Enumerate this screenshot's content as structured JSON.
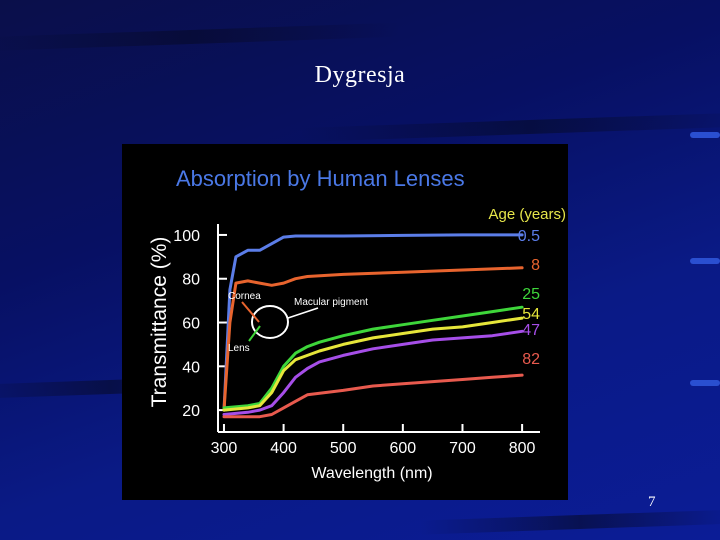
{
  "slide": {
    "title": "Dygresja",
    "page_number": "7"
  },
  "chart_data": {
    "type": "line",
    "title": "Absorption by Human Lenses",
    "xlabel": "Wavelength (nm)",
    "ylabel": "Transmittance (%)",
    "xlim": [
      290,
      830
    ],
    "ylim": [
      10,
      105
    ],
    "x_ticks": [
      300,
      400,
      500,
      600,
      700,
      800
    ],
    "y_ticks": [
      20,
      40,
      60,
      80,
      100
    ],
    "legend_title": "Age (years)",
    "annotations": [
      {
        "text": "Cornea"
      },
      {
        "text": "Macular pigment"
      },
      {
        "text": "Lens"
      }
    ],
    "series": [
      {
        "name": "0.5",
        "color": "#5b7de8",
        "x": [
          300,
          310,
          320,
          340,
          360,
          380,
          400,
          420,
          440,
          500,
          600,
          700,
          800
        ],
        "y": [
          20,
          75,
          90,
          93,
          93,
          96,
          99,
          99.5,
          99.5,
          99.5,
          99.8,
          100,
          100
        ]
      },
      {
        "name": "8",
        "color": "#e8642e",
        "x": [
          300,
          310,
          320,
          340,
          360,
          380,
          400,
          420,
          440,
          500,
          600,
          700,
          800
        ],
        "y": [
          20,
          60,
          78,
          79,
          78,
          77,
          78,
          80,
          81,
          82,
          83,
          84,
          85
        ]
      },
      {
        "name": "25",
        "color": "#3ed63a",
        "x": [
          300,
          340,
          360,
          380,
          400,
          420,
          440,
          460,
          500,
          550,
          600,
          650,
          700,
          750,
          800
        ],
        "y": [
          21,
          22,
          23,
          30,
          40,
          46,
          49,
          51,
          54,
          57,
          59,
          61,
          63,
          65,
          67
        ]
      },
      {
        "name": "54",
        "color": "#e6e63a",
        "x": [
          300,
          340,
          360,
          380,
          400,
          420,
          440,
          460,
          500,
          550,
          600,
          650,
          700,
          750,
          800
        ],
        "y": [
          20,
          21,
          22,
          28,
          38,
          43,
          45,
          47,
          50,
          53,
          55,
          57,
          58,
          60,
          62
        ]
      },
      {
        "name": "47",
        "color": "#a64ee8",
        "x": [
          300,
          340,
          360,
          380,
          400,
          420,
          440,
          460,
          500,
          550,
          600,
          650,
          700,
          750,
          800
        ],
        "y": [
          18,
          19,
          20,
          22,
          28,
          35,
          39,
          42,
          45,
          48,
          50,
          52,
          53,
          54,
          56
        ]
      },
      {
        "name": "82",
        "color": "#e85a4e",
        "x": [
          300,
          340,
          360,
          380,
          400,
          420,
          440,
          500,
          550,
          600,
          650,
          700,
          750,
          800
        ],
        "y": [
          17,
          17,
          17,
          18,
          21,
          24,
          27,
          29,
          31,
          32,
          33,
          34,
          35,
          36
        ]
      }
    ]
  }
}
